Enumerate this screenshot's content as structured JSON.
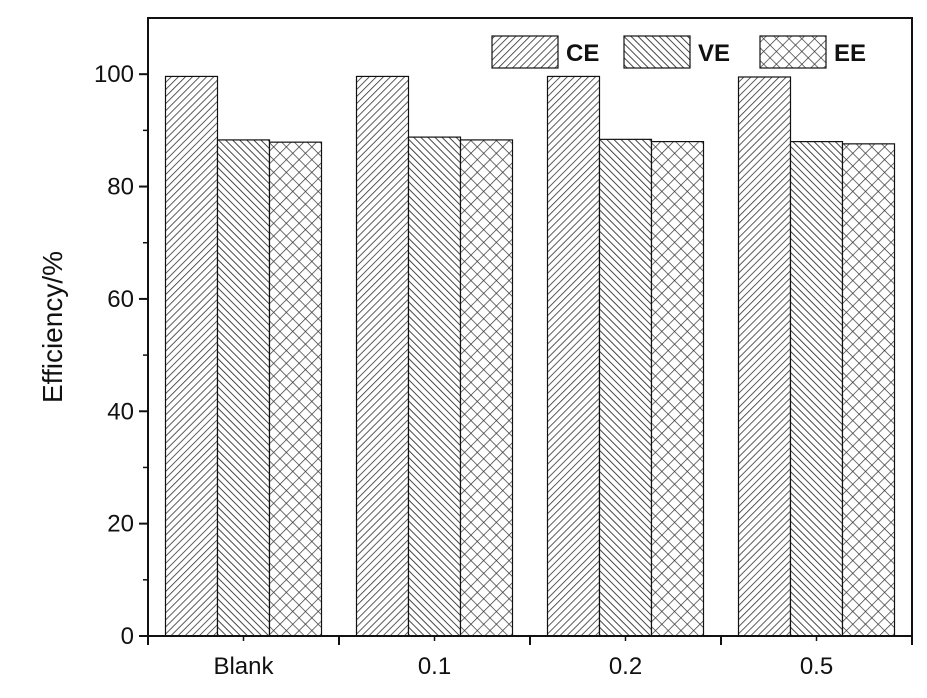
{
  "chart_data": {
    "type": "bar",
    "categories": [
      "Blank",
      "0.1",
      "0.2",
      "0.5"
    ],
    "series": [
      {
        "name": "CE",
        "values": [
          99.6,
          99.6,
          99.6,
          99.5
        ],
        "pattern": "diag-fine"
      },
      {
        "name": "VE",
        "values": [
          88.3,
          88.8,
          88.4,
          88.0
        ],
        "pattern": "diag-dense"
      },
      {
        "name": "EE",
        "values": [
          87.9,
          88.3,
          88.0,
          87.6
        ],
        "pattern": "crosshatch"
      }
    ],
    "xlabel": "",
    "ylabel": "Efficiency/%",
    "ylim": [
      0,
      110
    ],
    "yticks": [
      0,
      20,
      40,
      60,
      80,
      100
    ],
    "legend_position": "top-right",
    "grid": false,
    "colors": {
      "stroke": "#111111",
      "background": "#ffffff"
    }
  }
}
